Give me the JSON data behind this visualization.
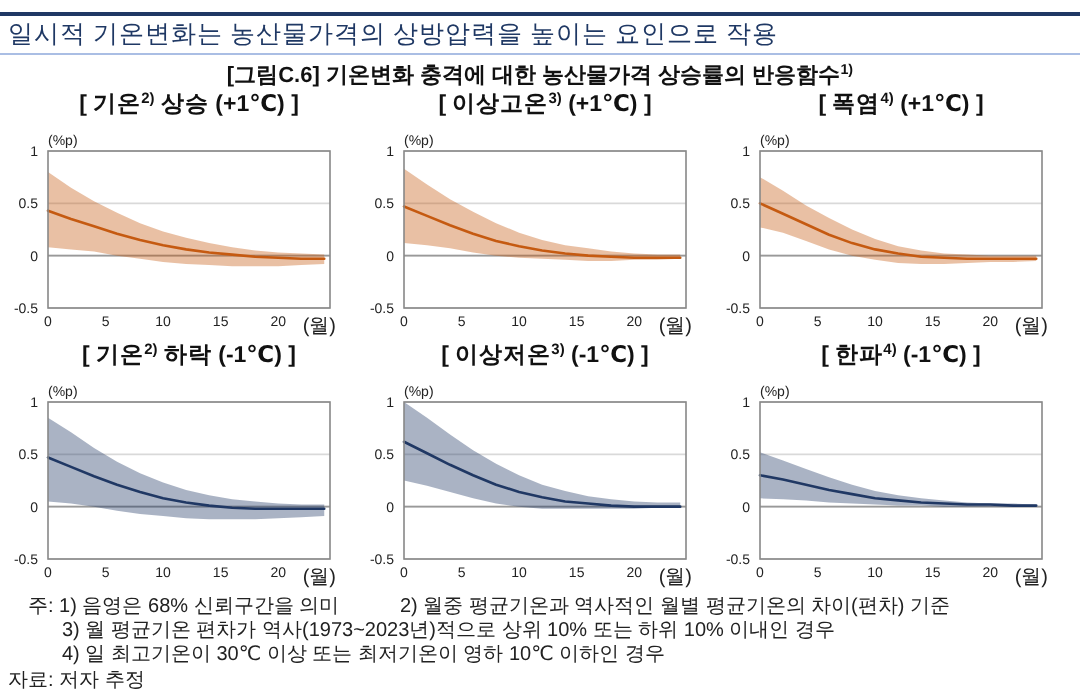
{
  "chart_data": [
    {
      "type": "other",
      "title": "일시적 기온변화는 농산물가격의 상방압력을 높이는 요인으로 작용",
      "subtitle": "[그림C.6] 기온변화 충격에 대한 농산물가격 상승률의 반응함수$^{1)}$",
      "annotations": [
        "주: 1) 음영은 68% 신뢰구간을 의미",
        "2) 월중 평균기온과 역사적인 월별 평균기온의 차이(편차) 기준",
        "3) 월 평균기온 편차가 역사(1973~2023년)적으로 상위 10% 또는 하위 10% 이내인 경우",
        "4) 일 최고기온이 30℃ 이상 또는 최저기온이 영하 10℃ 이하인 경우",
        "자료: 저자 추정"
      ]
    },
    {
      "type": "line",
      "ref_lines": [
        {
          "axis": "y",
          "value": 0,
          "color": "#999999"
        }
      ],
      "title": "[ 기온$^{2)}$ 상승 (+1℃) ]",
      "xlabel": "(월)",
      "ylabel": "(%p)",
      "x": [
        0,
        2,
        4,
        6,
        8,
        10,
        12,
        14,
        16,
        18,
        20,
        22,
        24
      ],
      "xlim": [
        0,
        24.5
      ],
      "ylim": [
        -0.5,
        1
      ],
      "xticks": [
        0,
        5,
        10,
        15,
        20
      ],
      "yticks": [
        -0.5,
        0,
        0.5,
        1
      ],
      "grid": "y",
      "series": [
        {
          "color": "#c55a11",
          "values": [
            0.43,
            0.35,
            0.28,
            0.21,
            0.15,
            0.1,
            0.06,
            0.03,
            0.01,
            -0.01,
            -0.02,
            -0.03,
            -0.03
          ],
          "lower": [
            0.08,
            0.06,
            0.04,
            0.0,
            -0.03,
            -0.06,
            -0.08,
            -0.09,
            -0.1,
            -0.1,
            -0.1,
            -0.09,
            -0.08
          ],
          "upper": [
            0.8,
            0.65,
            0.52,
            0.41,
            0.31,
            0.23,
            0.17,
            0.12,
            0.08,
            0.05,
            0.03,
            0.02,
            0.01
          ]
        }
      ]
    },
    {
      "type": "line",
      "ref_lines": [
        {
          "axis": "y",
          "value": 0,
          "color": "#999999"
        }
      ],
      "title": "[ 이상고온$^{3)}$ (+1℃) ]",
      "xlabel": "(월)",
      "ylabel": "(%p)",
      "x": [
        0,
        2,
        4,
        6,
        8,
        10,
        12,
        14,
        16,
        18,
        20,
        22,
        24
      ],
      "xlim": [
        0,
        24.5
      ],
      "ylim": [
        -0.5,
        1
      ],
      "xticks": [
        0,
        5,
        10,
        15,
        20
      ],
      "yticks": [
        -0.5,
        0,
        0.5,
        1
      ],
      "grid": "y",
      "series": [
        {
          "color": "#c55a11",
          "values": [
            0.47,
            0.38,
            0.29,
            0.21,
            0.14,
            0.09,
            0.05,
            0.02,
            0.0,
            -0.01,
            -0.02,
            -0.02,
            -0.02
          ],
          "lower": [
            0.12,
            0.1,
            0.07,
            0.03,
            0.0,
            -0.02,
            -0.03,
            -0.04,
            -0.05,
            -0.05,
            -0.04,
            -0.04,
            -0.03
          ],
          "upper": [
            0.83,
            0.68,
            0.54,
            0.42,
            0.31,
            0.22,
            0.15,
            0.1,
            0.07,
            0.04,
            0.02,
            0.01,
            0.01
          ]
        }
      ]
    },
    {
      "type": "line",
      "ref_lines": [
        {
          "axis": "y",
          "value": 0,
          "color": "#999999"
        }
      ],
      "title": "[ 폭염$^{4)}$ (+1℃) ]",
      "xlabel": "(월)",
      "ylabel": "(%p)",
      "x": [
        0,
        2,
        4,
        6,
        8,
        10,
        12,
        14,
        16,
        18,
        20,
        22,
        24
      ],
      "xlim": [
        0,
        24.5
      ],
      "ylim": [
        -0.5,
        1
      ],
      "xticks": [
        0,
        5,
        10,
        15,
        20
      ],
      "yticks": [
        -0.5,
        0,
        0.5,
        1
      ],
      "grid": "y",
      "series": [
        {
          "color": "#c55a11",
          "values": [
            0.5,
            0.4,
            0.3,
            0.2,
            0.12,
            0.06,
            0.02,
            -0.01,
            -0.02,
            -0.03,
            -0.03,
            -0.03,
            -0.03
          ],
          "lower": [
            0.27,
            0.22,
            0.14,
            0.06,
            0.0,
            -0.04,
            -0.07,
            -0.08,
            -0.08,
            -0.07,
            -0.06,
            -0.06,
            -0.05
          ],
          "upper": [
            0.75,
            0.62,
            0.48,
            0.36,
            0.25,
            0.16,
            0.09,
            0.05,
            0.02,
            0.01,
            0.0,
            0.0,
            0.0
          ]
        }
      ]
    },
    {
      "type": "line",
      "ref_lines": [
        {
          "axis": "y",
          "value": 0,
          "color": "#999999"
        }
      ],
      "title": "[ 기온$^{2)}$ 하락 (-1℃) ]",
      "xlabel": "(월)",
      "ylabel": "(%p)",
      "x": [
        0,
        2,
        4,
        6,
        8,
        10,
        12,
        14,
        16,
        18,
        20,
        22,
        24
      ],
      "xlim": [
        0,
        24.5
      ],
      "ylim": [
        -0.5,
        1
      ],
      "xticks": [
        0,
        5,
        10,
        15,
        20
      ],
      "yticks": [
        -0.5,
        0,
        0.5,
        1
      ],
      "grid": "y",
      "series": [
        {
          "color": "#203864",
          "values": [
            0.47,
            0.38,
            0.29,
            0.21,
            0.14,
            0.08,
            0.04,
            0.01,
            -0.01,
            -0.02,
            -0.02,
            -0.02,
            -0.02
          ],
          "lower": [
            0.05,
            0.03,
            0.0,
            -0.04,
            -0.07,
            -0.09,
            -0.11,
            -0.12,
            -0.12,
            -0.12,
            -0.11,
            -0.1,
            -0.09
          ],
          "upper": [
            0.85,
            0.71,
            0.56,
            0.43,
            0.32,
            0.23,
            0.16,
            0.11,
            0.07,
            0.05,
            0.03,
            0.02,
            0.02
          ]
        }
      ]
    },
    {
      "type": "line",
      "ref_lines": [
        {
          "axis": "y",
          "value": 0,
          "color": "#999999"
        }
      ],
      "title": "[ 이상저온$^{3)}$ (-1℃) ]",
      "xlabel": "(월)",
      "ylabel": "(%p)",
      "x": [
        0,
        2,
        4,
        6,
        8,
        10,
        12,
        14,
        16,
        18,
        20,
        22,
        24
      ],
      "xlim": [
        0,
        24.5
      ],
      "ylim": [
        -0.5,
        1
      ],
      "xticks": [
        0,
        5,
        10,
        15,
        20
      ],
      "yticks": [
        -0.5,
        0,
        0.5,
        1
      ],
      "grid": "y",
      "series": [
        {
          "color": "#203864",
          "values": [
            0.62,
            0.51,
            0.4,
            0.3,
            0.21,
            0.14,
            0.09,
            0.05,
            0.03,
            0.01,
            0.0,
            0.0,
            0.0
          ],
          "lower": [
            0.25,
            0.2,
            0.14,
            0.08,
            0.03,
            0.0,
            -0.02,
            -0.02,
            -0.02,
            -0.02,
            -0.02,
            -0.01,
            -0.01
          ],
          "upper": [
            1.0,
            0.85,
            0.69,
            0.54,
            0.41,
            0.3,
            0.21,
            0.15,
            0.1,
            0.07,
            0.05,
            0.04,
            0.04
          ]
        }
      ]
    },
    {
      "type": "line",
      "ref_lines": [
        {
          "axis": "y",
          "value": 0,
          "color": "#999999"
        }
      ],
      "title": "[ 한파$^{4)}$ (-1℃) ]",
      "xlabel": "(월)",
      "ylabel": "(%p)",
      "x": [
        0,
        2,
        4,
        6,
        8,
        10,
        12,
        14,
        16,
        18,
        20,
        22,
        24
      ],
      "xlim": [
        0,
        24.5
      ],
      "ylim": [
        -0.5,
        1
      ],
      "xticks": [
        0,
        5,
        10,
        15,
        20
      ],
      "yticks": [
        -0.5,
        0,
        0.5,
        1
      ],
      "grid": "y",
      "series": [
        {
          "color": "#203864",
          "values": [
            0.3,
            0.26,
            0.21,
            0.16,
            0.12,
            0.08,
            0.06,
            0.04,
            0.03,
            0.02,
            0.02,
            0.01,
            0.01
          ],
          "lower": [
            0.08,
            0.07,
            0.06,
            0.04,
            0.03,
            0.02,
            0.01,
            0.01,
            0.0,
            0.0,
            0.0,
            0.0,
            0.0
          ],
          "upper": [
            0.52,
            0.44,
            0.36,
            0.28,
            0.21,
            0.15,
            0.11,
            0.08,
            0.06,
            0.04,
            0.03,
            0.03,
            0.02
          ]
        }
      ]
    }
  ]
}
